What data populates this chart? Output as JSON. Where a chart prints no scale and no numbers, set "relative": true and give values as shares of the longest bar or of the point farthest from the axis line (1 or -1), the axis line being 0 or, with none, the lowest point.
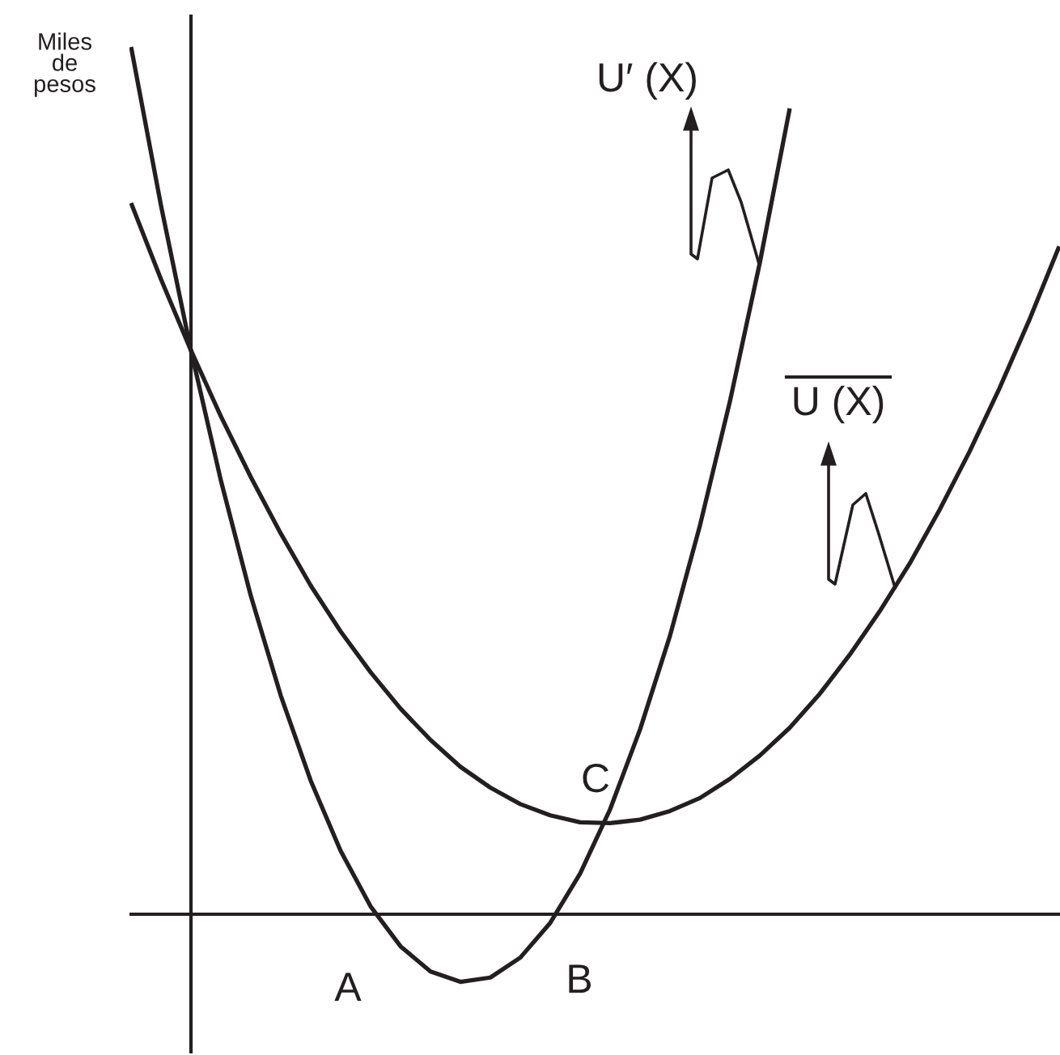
{
  "chart_data": {
    "type": "line",
    "relative": true,
    "ylabel": "Miles\nde\npesos",
    "categories": [
      null,
      null,
      null,
      null,
      null,
      null,
      null,
      null,
      null,
      null,
      null,
      null,
      null,
      null,
      null,
      null,
      null,
      null,
      null,
      null,
      null,
      null,
      null,
      null,
      null,
      null,
      null,
      null,
      null,
      null,
      null,
      null
    ],
    "series": [
      {
        "name": "U′ (X)",
        "color": "#231f20",
        "values": [
          1.0,
          0.817,
          0.65,
          0.5,
          0.367,
          0.252,
          0.154,
          0.073,
          0.009,
          -0.037,
          -0.066,
          -0.078,
          -0.073,
          -0.05,
          -0.01,
          0.047,
          0.121,
          0.213,
          0.321,
          0.448,
          0.591,
          0.751,
          0.929,
          null,
          null,
          null,
          null,
          null,
          null,
          null,
          null,
          null
        ]
      },
      {
        "name": "U (X)",
        "color": "#231f20",
        "values": [
          0.82,
          0.732,
          0.65,
          0.574,
          0.504,
          0.439,
          0.379,
          0.326,
          0.279,
          0.237,
          0.201,
          0.17,
          0.146,
          0.127,
          0.114,
          0.106,
          0.105,
          0.109,
          0.119,
          0.134,
          0.156,
          0.183,
          0.215,
          0.254,
          0.299,
          0.349,
          0.404,
          0.466,
          0.533,
          0.606,
          0.685,
          0.77
        ]
      }
    ],
    "ref_lines": [
      {
        "axis": "y",
        "value": 0,
        "color": "#231f20"
      }
    ],
    "annotations": [
      "A",
      "B",
      "C"
    ],
    "line_style": "solid",
    "marker": "none"
  }
}
